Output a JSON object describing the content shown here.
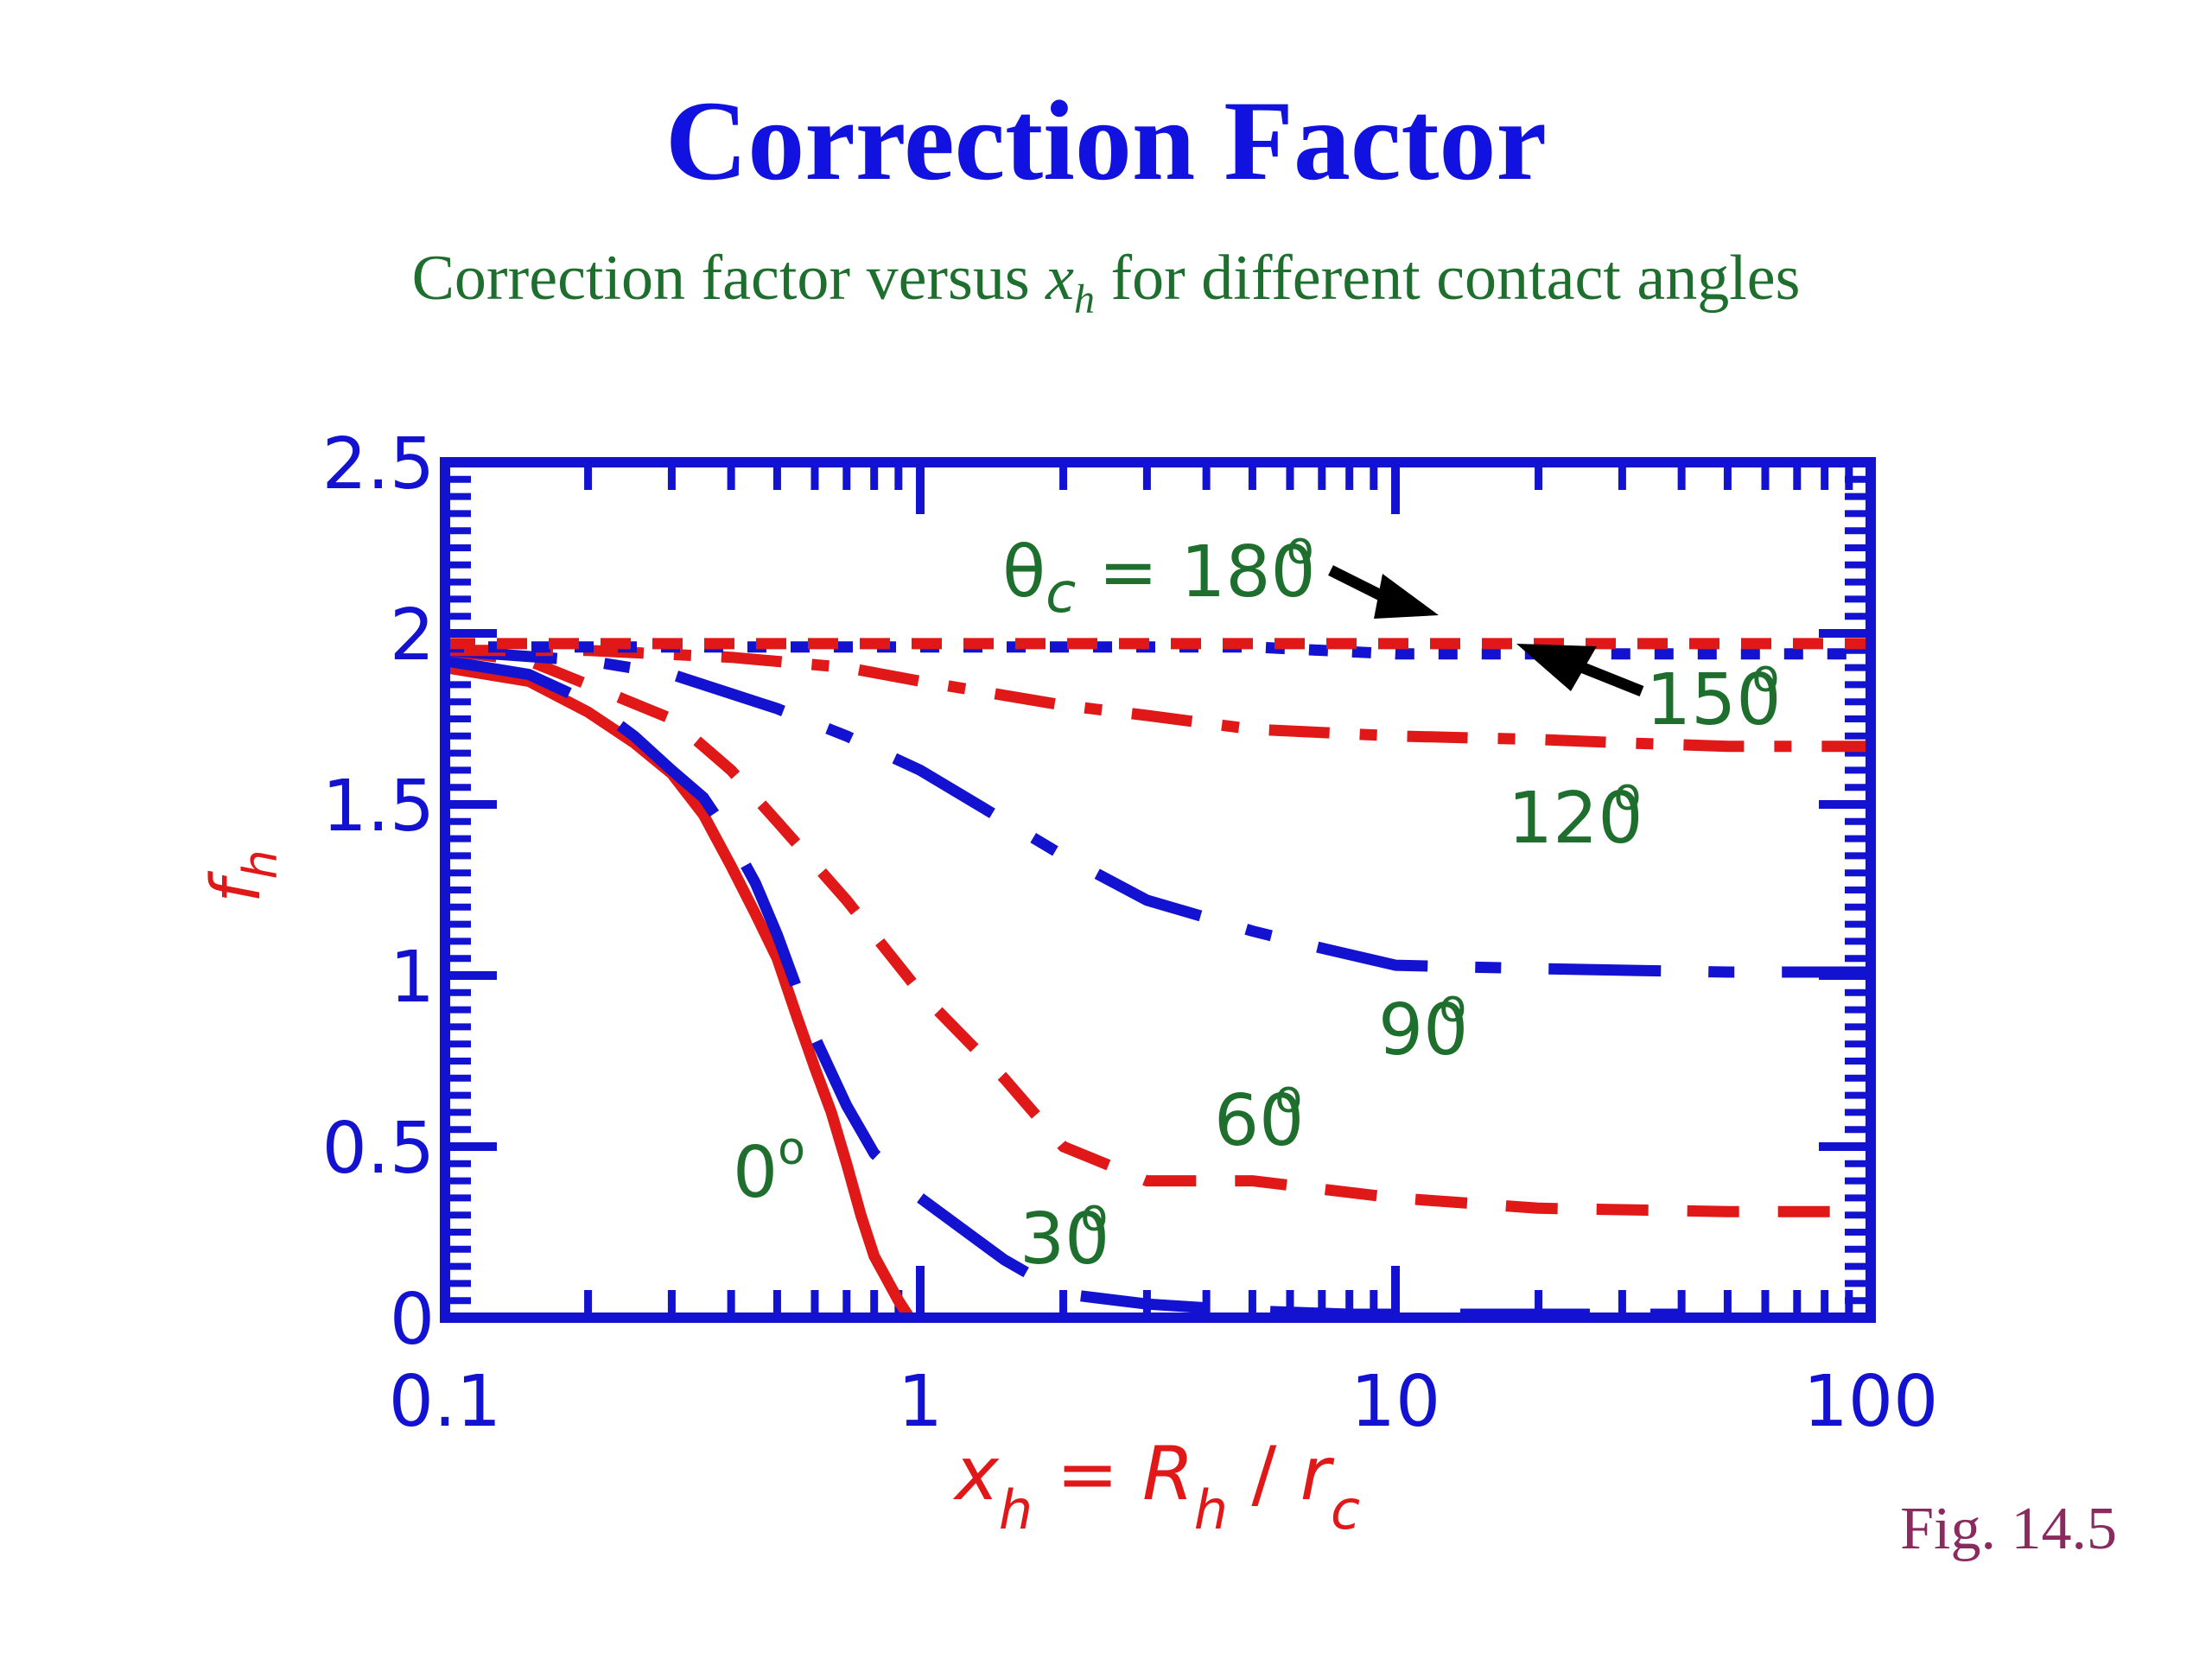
{
  "title_main": "Correction Factor",
  "subtitle": {
    "before": "Correction factor versus ",
    "var": "x",
    "var_sub": "h",
    "after": " for different contact angles"
  },
  "figure_label": "Fig. 14.5",
  "colors": {
    "blue": "#1212d0",
    "red": "#e01818",
    "green": "#1e6e2e",
    "black": "#000000"
  },
  "chart_data": {
    "type": "line",
    "xscale": "log",
    "xlim": [
      0.1,
      100
    ],
    "ylim": [
      0,
      2.5
    ],
    "xticks": [
      {
        "value": 0.1,
        "label": "0.1"
      },
      {
        "value": 1,
        "label": "1"
      },
      {
        "value": 10,
        "label": "10"
      },
      {
        "value": 100,
        "label": "100"
      }
    ],
    "yticks": [
      {
        "value": 0,
        "label": "0"
      },
      {
        "value": 0.5,
        "label": "0.5"
      },
      {
        "value": 1,
        "label": "1"
      },
      {
        "value": 1.5,
        "label": "1.5"
      },
      {
        "value": 2,
        "label": "2"
      },
      {
        "value": 2.5,
        "label": "2.5"
      }
    ],
    "xlabel": {
      "base": "x",
      "sub": "h",
      "eq": " = ",
      "num": "R",
      "num_sub": "h",
      "slash": " / ",
      "den": "r",
      "den_sub": "c"
    },
    "ylabel": {
      "base": "f",
      "sub": "h"
    },
    "series": [
      {
        "angle": "0",
        "color": "red",
        "dash": "solid",
        "x": [
          0.1,
          0.15,
          0.2,
          0.25,
          0.3,
          0.35,
          0.4,
          0.45,
          0.5,
          0.55,
          0.6,
          0.65,
          0.7,
          0.75,
          0.8,
          0.9,
          0.95
        ],
        "y": [
          1.9,
          1.86,
          1.77,
          1.68,
          1.59,
          1.47,
          1.32,
          1.18,
          1.05,
          0.88,
          0.73,
          0.6,
          0.45,
          0.3,
          0.18,
          0.05,
          0.0
        ]
      },
      {
        "angle": "30",
        "color": "blue",
        "dash": "long",
        "x": [
          0.1,
          0.15,
          0.2,
          0.25,
          0.3,
          0.35,
          0.4,
          0.45,
          0.5,
          0.6,
          0.7,
          0.8,
          1.0,
          1.5,
          2.0,
          3.0,
          5.0,
          8.0,
          20,
          40
        ],
        "y": [
          1.92,
          1.88,
          1.8,
          1.7,
          1.6,
          1.52,
          1.4,
          1.27,
          1.12,
          0.82,
          0.62,
          0.48,
          0.35,
          0.17,
          0.07,
          0.04,
          0.02,
          0.01,
          0.01,
          0.01
        ]
      },
      {
        "angle": "60",
        "color": "red",
        "dash": "medium",
        "x": [
          0.1,
          0.15,
          0.2,
          0.3,
          0.4,
          0.5,
          0.7,
          1.0,
          1.5,
          2.0,
          3.0,
          5.0,
          10,
          20,
          50,
          100
        ],
        "y": [
          1.95,
          1.92,
          1.85,
          1.75,
          1.6,
          1.45,
          1.22,
          0.95,
          0.7,
          0.5,
          0.4,
          0.4,
          0.35,
          0.32,
          0.31,
          0.31
        ]
      },
      {
        "angle": "90",
        "color": "blue",
        "dash": "longdot",
        "x": [
          0.1,
          0.2,
          0.3,
          0.5,
          0.7,
          1.0,
          2.0,
          3.0,
          5.0,
          7.0,
          10,
          20,
          50,
          100
        ],
        "y": [
          1.95,
          1.92,
          1.88,
          1.78,
          1.7,
          1.6,
          1.35,
          1.22,
          1.13,
          1.08,
          1.03,
          1.02,
          1.01,
          1.01
        ]
      },
      {
        "angle": "120",
        "color": "red",
        "dash": "dashdot",
        "x": [
          0.1,
          0.2,
          0.4,
          0.7,
          1.0,
          2.0,
          3.0,
          5.0,
          10,
          20,
          30,
          50,
          100
        ],
        "y": [
          1.95,
          1.95,
          1.93,
          1.9,
          1.86,
          1.79,
          1.76,
          1.72,
          1.7,
          1.69,
          1.68,
          1.67,
          1.67
        ]
      },
      {
        "angle": "150",
        "color": "blue",
        "dash": "dot",
        "x": [
          0.1,
          1.0,
          5.0,
          10,
          30,
          100
        ],
        "y": [
          1.96,
          1.96,
          1.96,
          1.94,
          1.94,
          1.94
        ]
      },
      {
        "angle": "180",
        "color": "red",
        "dash": "shortdash",
        "x": [
          0.1,
          1.0,
          10,
          100
        ],
        "y": [
          1.97,
          1.97,
          1.97,
          1.97
        ]
      }
    ],
    "annotations": [
      {
        "label": "θ",
        "sub": "c",
        "text": " = 180",
        "deg": "o"
      },
      {
        "label": "150",
        "deg": "o"
      },
      {
        "label": "120",
        "deg": "o"
      },
      {
        "label": "90",
        "deg": "o"
      },
      {
        "label": "60",
        "deg": "o"
      },
      {
        "label": "30",
        "deg": "o"
      },
      {
        "label": "0",
        "deg": "o"
      }
    ]
  }
}
